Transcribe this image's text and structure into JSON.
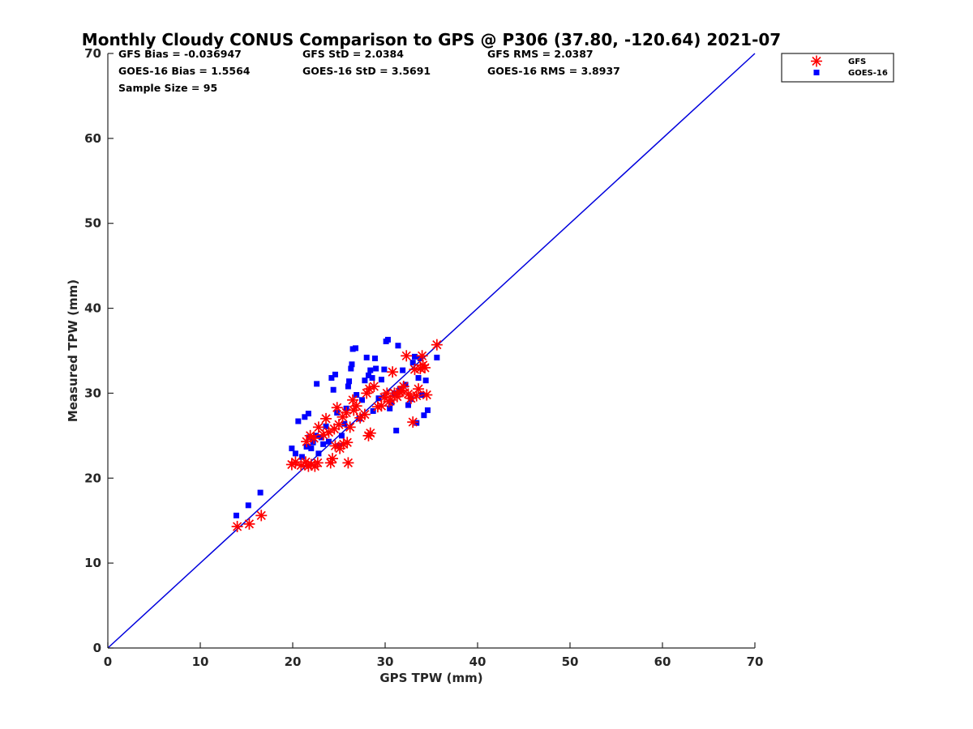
{
  "chart_data": {
    "type": "scatter",
    "title": "Monthly Cloudy CONUS Comparison to GPS @ P306 (37.80, -120.64) 2021-07",
    "xlabel": "GPS TPW (mm)",
    "ylabel": "Measured TPW (mm)",
    "xlim": [
      0,
      70
    ],
    "ylim": [
      0,
      70
    ],
    "xticks": [
      "0",
      "10",
      "20",
      "30",
      "40",
      "50",
      "60",
      "70"
    ],
    "yticks": [
      "0",
      "10",
      "20",
      "30",
      "40",
      "50",
      "60",
      "70"
    ],
    "grid": false,
    "legend_position": "top-right, outside plot",
    "stats": {
      "gfs_bias": "GFS Bias = -0.036947",
      "gfs_std": "GFS StD = 2.0384",
      "gfs_rms": "GFS RMS = 2.0387",
      "goes_bias": "GOES-16 Bias = 1.5564",
      "goes_std": "GOES-16 StD = 3.5691",
      "goes_rms": "GOES-16 RMS = 3.8937",
      "sample_size": "Sample Size = 95"
    },
    "reference_line": {
      "x": [
        0,
        70
      ],
      "y": [
        0,
        70
      ],
      "color": "#0000dd"
    },
    "series": [
      {
        "name": "GFS",
        "marker": "asterisk",
        "color": "#ff0000",
        "points": [
          [
            14.0,
            14.3
          ],
          [
            15.3,
            14.6
          ],
          [
            16.6,
            15.6
          ],
          [
            19.9,
            21.6
          ],
          [
            20.3,
            21.9
          ],
          [
            20.9,
            21.5
          ],
          [
            21.4,
            21.9
          ],
          [
            21.7,
            21.4
          ],
          [
            22.0,
            21.6
          ],
          [
            22.4,
            21.4
          ],
          [
            22.7,
            21.8
          ],
          [
            21.5,
            24.3
          ],
          [
            21.9,
            25.0
          ],
          [
            22.3,
            24.7
          ],
          [
            22.8,
            26.0
          ],
          [
            23.3,
            25.1
          ],
          [
            23.6,
            27.0
          ],
          [
            23.9,
            25.4
          ],
          [
            24.1,
            21.8
          ],
          [
            24.3,
            22.3
          ],
          [
            24.6,
            23.8
          ],
          [
            25.1,
            23.5
          ],
          [
            25.5,
            24.0
          ],
          [
            25.9,
            24.2
          ],
          [
            26.0,
            21.8
          ],
          [
            24.5,
            25.8
          ],
          [
            24.8,
            28.3
          ],
          [
            25.0,
            26.3
          ],
          [
            25.4,
            27.2
          ],
          [
            25.8,
            27.7
          ],
          [
            26.2,
            26.0
          ],
          [
            26.6,
            28.0
          ],
          [
            26.5,
            29.2
          ],
          [
            26.9,
            28.5
          ],
          [
            27.3,
            27.1
          ],
          [
            27.8,
            27.5
          ],
          [
            28.0,
            30.0
          ],
          [
            28.2,
            25.0
          ],
          [
            28.4,
            25.3
          ],
          [
            28.3,
            30.5
          ],
          [
            28.8,
            30.8
          ],
          [
            29.2,
            28.4
          ],
          [
            29.6,
            28.5
          ],
          [
            29.9,
            29.5
          ],
          [
            30.2,
            30.0
          ],
          [
            30.4,
            29.0
          ],
          [
            30.6,
            29.2
          ],
          [
            30.8,
            32.5
          ],
          [
            31.0,
            30.0
          ],
          [
            31.3,
            29.6
          ],
          [
            31.6,
            30.1
          ],
          [
            31.8,
            30.3
          ],
          [
            32.0,
            30.8
          ],
          [
            32.3,
            34.4
          ],
          [
            32.5,
            29.9
          ],
          [
            32.8,
            29.4
          ],
          [
            33.0,
            26.6
          ],
          [
            33.2,
            32.8
          ],
          [
            33.4,
            29.7
          ],
          [
            33.6,
            30.5
          ],
          [
            33.8,
            32.9
          ],
          [
            34.0,
            34.4
          ],
          [
            34.1,
            33.3
          ],
          [
            34.3,
            33.0
          ],
          [
            34.5,
            29.8
          ],
          [
            35.6,
            35.7
          ]
        ]
      },
      {
        "name": "GOES-16",
        "marker": "square",
        "color": "#0000ff",
        "points": [
          [
            13.9,
            15.6
          ],
          [
            15.2,
            16.8
          ],
          [
            16.5,
            18.3
          ],
          [
            19.9,
            23.5
          ],
          [
            20.3,
            22.9
          ],
          [
            20.6,
            26.7
          ],
          [
            21.0,
            22.5
          ],
          [
            21.3,
            27.2
          ],
          [
            21.5,
            23.7
          ],
          [
            21.7,
            27.6
          ],
          [
            21.8,
            24.8
          ],
          [
            22.0,
            23.5
          ],
          [
            22.2,
            24.2
          ],
          [
            22.5,
            25.0
          ],
          [
            22.6,
            31.1
          ],
          [
            22.8,
            22.9
          ],
          [
            23.1,
            24.8
          ],
          [
            23.3,
            24.0
          ],
          [
            23.6,
            26.1
          ],
          [
            23.9,
            24.3
          ],
          [
            24.2,
            31.8
          ],
          [
            24.4,
            30.4
          ],
          [
            24.6,
            32.2
          ],
          [
            24.8,
            27.7
          ],
          [
            25.0,
            23.8
          ],
          [
            25.3,
            25.0
          ],
          [
            25.6,
            26.4
          ],
          [
            25.8,
            28.2
          ],
          [
            26.0,
            30.8
          ],
          [
            26.1,
            31.4
          ],
          [
            26.3,
            32.9
          ],
          [
            26.4,
            33.4
          ],
          [
            26.5,
            35.2
          ],
          [
            26.8,
            35.3
          ],
          [
            26.9,
            29.8
          ],
          [
            27.2,
            27.0
          ],
          [
            27.5,
            29.2
          ],
          [
            27.8,
            31.5
          ],
          [
            28.0,
            34.2
          ],
          [
            28.2,
            32.1
          ],
          [
            28.4,
            32.7
          ],
          [
            28.6,
            31.8
          ],
          [
            28.7,
            27.9
          ],
          [
            28.9,
            34.1
          ],
          [
            29.0,
            32.9
          ],
          [
            29.3,
            29.4
          ],
          [
            29.6,
            31.6
          ],
          [
            29.9,
            32.8
          ],
          [
            30.1,
            36.1
          ],
          [
            30.3,
            36.3
          ],
          [
            30.5,
            28.2
          ],
          [
            30.7,
            28.9
          ],
          [
            31.0,
            30.0
          ],
          [
            31.2,
            25.6
          ],
          [
            31.4,
            35.6
          ],
          [
            31.6,
            30.5
          ],
          [
            31.9,
            32.7
          ],
          [
            32.2,
            31.0
          ],
          [
            32.5,
            28.6
          ],
          [
            32.8,
            29.3
          ],
          [
            33.0,
            33.6
          ],
          [
            33.2,
            34.3
          ],
          [
            33.4,
            26.5
          ],
          [
            33.6,
            31.8
          ],
          [
            33.8,
            34.1
          ],
          [
            34.0,
            29.8
          ],
          [
            34.2,
            27.4
          ],
          [
            34.4,
            31.5
          ],
          [
            34.6,
            28.0
          ],
          [
            35.6,
            34.2
          ]
        ]
      }
    ]
  }
}
